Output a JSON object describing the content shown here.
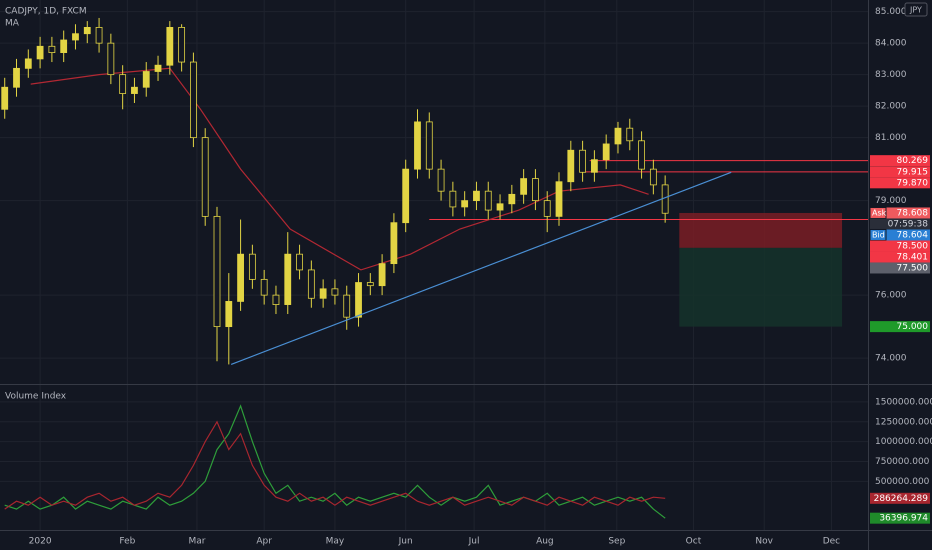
{
  "chart_data": [
    {
      "type": "candlestick",
      "title": "CADJPY, 1D, FXCM",
      "indicator": "MA",
      "currency": "JPY",
      "color": "#e2d444",
      "x": [
        -15,
        -10,
        -5,
        0,
        5,
        10,
        15,
        20,
        25,
        30,
        35,
        40,
        45,
        50,
        55,
        60,
        65,
        70,
        75,
        80,
        85,
        90,
        95,
        100,
        105,
        110,
        115,
        120,
        125,
        130,
        135,
        140,
        145,
        150,
        155,
        160,
        165,
        170,
        175,
        180,
        185,
        190,
        195,
        200,
        205,
        210,
        215,
        220,
        225,
        230,
        235,
        240,
        245,
        250,
        255,
        260,
        265
      ],
      "open": [
        81.9,
        82.6,
        83.2,
        83.5,
        83.9,
        83.7,
        84.1,
        84.3,
        84.5,
        84.0,
        83.0,
        82.4,
        82.6,
        83.1,
        83.3,
        84.5,
        83.4,
        81.0,
        78.5,
        75.0,
        75.8,
        77.3,
        76.5,
        76.0,
        75.7,
        77.3,
        76.8,
        75.9,
        76.2,
        76.0,
        75.3,
        76.4,
        76.3,
        77.0,
        78.3,
        80.0,
        81.5,
        80.0,
        79.3,
        78.8,
        79.0,
        79.3,
        78.7,
        78.9,
        79.2,
        79.7,
        79.0,
        78.5,
        79.6,
        80.6,
        79.9,
        80.3,
        80.8,
        81.3,
        80.9,
        80.0,
        79.5
      ],
      "high": [
        82.9,
        83.5,
        83.8,
        84.2,
        84.2,
        84.4,
        84.6,
        84.7,
        84.8,
        84.3,
        83.3,
        82.9,
        83.4,
        83.6,
        84.7,
        84.6,
        83.7,
        81.3,
        78.8,
        76.7,
        78.4,
        77.6,
        76.8,
        76.3,
        78.0,
        77.6,
        77.1,
        76.5,
        76.5,
        76.3,
        76.7,
        76.7,
        77.3,
        78.6,
        80.3,
        81.9,
        81.8,
        80.3,
        79.6,
        79.3,
        79.6,
        79.6,
        79.2,
        79.5,
        80.0,
        80.0,
        79.3,
        79.9,
        80.9,
        80.9,
        80.6,
        81.1,
        81.5,
        81.6,
        81.2,
        80.3,
        79.8
      ],
      "low": [
        81.6,
        82.3,
        82.9,
        83.2,
        83.4,
        83.4,
        83.8,
        84.0,
        83.7,
        82.7,
        81.9,
        82.1,
        82.3,
        82.8,
        83.0,
        83.1,
        80.7,
        78.2,
        73.9,
        73.8,
        75.5,
        76.2,
        75.7,
        75.4,
        75.4,
        76.5,
        75.6,
        75.6,
        75.7,
        74.9,
        75.0,
        76.0,
        76.0,
        76.7,
        78.0,
        79.7,
        79.7,
        79.0,
        78.5,
        78.5,
        78.7,
        78.4,
        78.4,
        78.6,
        78.9,
        78.7,
        78.0,
        78.2,
        79.3,
        79.6,
        79.6,
        80.0,
        80.5,
        80.6,
        79.7,
        79.2,
        78.3
      ],
      "close": [
        82.6,
        83.2,
        83.5,
        83.9,
        83.7,
        84.1,
        84.3,
        84.5,
        84.0,
        83.0,
        82.4,
        82.6,
        83.1,
        83.3,
        84.5,
        83.4,
        81.0,
        78.5,
        75.0,
        75.8,
        77.3,
        76.5,
        76.0,
        75.7,
        77.3,
        76.8,
        75.9,
        76.2,
        76.0,
        75.3,
        76.4,
        76.3,
        77.0,
        78.3,
        80.0,
        81.5,
        80.0,
        79.3,
        78.8,
        79.0,
        79.3,
        78.7,
        78.9,
        79.2,
        79.7,
        79.0,
        78.5,
        79.6,
        80.6,
        79.9,
        80.3,
        80.8,
        81.3,
        80.9,
        80.0,
        79.5,
        78.6
      ],
      "ma": {
        "color": "#b22833",
        "x": [
          -4,
          25,
          55,
          68,
          85,
          106,
          136,
          157,
          178,
          203,
          220,
          246,
          258
        ],
        "values": [
          82.7,
          83.0,
          83.2,
          81.9,
          80.0,
          78.1,
          76.8,
          77.3,
          78.1,
          78.7,
          79.3,
          79.5,
          79.2
        ]
      },
      "trendline": {
        "color": "#4a8fd4",
        "x": [
          81,
          293
        ],
        "values": [
          73.8,
          79.9
        ]
      },
      "hlines": [
        {
          "value": 80.269,
          "x": 233,
          "color": "#f23645"
        },
        {
          "value": 79.915,
          "x": 230,
          "color": "#f23645"
        },
        {
          "value": 78.401,
          "x": 165,
          "color": "#f23645"
        }
      ],
      "zones": [
        {
          "x": [
            271,
            340
          ],
          "values": [
            78.608,
            77.5
          ],
          "color": "#7a1d25"
        },
        {
          "x": [
            271,
            340
          ],
          "values": [
            77.5,
            75.0
          ],
          "color": "#15332a"
        }
      ],
      "xlim": [
        -17,
        351
      ],
      "ylim": [
        73.21,
        85.37
      ],
      "yticks": [
        {
          "value": 74,
          "label": "74.000"
        },
        {
          "value": 76,
          "label": "76.000"
        },
        {
          "value": 79,
          "label": "79.000"
        },
        {
          "value": 81,
          "label": "81.000"
        },
        {
          "value": 82,
          "label": "82.000"
        },
        {
          "value": 83,
          "label": "83.000"
        },
        {
          "value": 84,
          "label": "84.000"
        },
        {
          "value": 85,
          "label": "85.000"
        }
      ],
      "xticks": [
        {
          "value": 0,
          "label": "2020"
        },
        {
          "value": 37,
          "label": "Feb"
        },
        {
          "value": 66.5,
          "label": "Mar"
        },
        {
          "value": 95,
          "label": "Apr"
        },
        {
          "value": 125,
          "label": "May"
        },
        {
          "value": 155,
          "label": "Jun"
        },
        {
          "value": 184,
          "label": "Jul"
        },
        {
          "value": 214,
          "label": "Aug"
        },
        {
          "value": 244.5,
          "label": "Sep"
        },
        {
          "value": 277,
          "label": "Oct"
        },
        {
          "value": 307,
          "label": "Nov"
        },
        {
          "value": 335.5,
          "label": "Dec"
        }
      ],
      "countdown": "07:59:38",
      "price_labels": [
        {
          "value": 80.269,
          "label": "80.269",
          "color": "#f23645"
        },
        {
          "value": 79.915,
          "label": "79.915",
          "color": "#f23645"
        },
        {
          "value": 79.87,
          "label": "79.870",
          "color": "#f23645"
        },
        {
          "value": 78.608,
          "label": "78.608",
          "tag": "Ask",
          "color": "#f05a5e"
        },
        {
          "value": 78.604,
          "label": "78.604",
          "tag": "Bid",
          "color": "#2a7fd4"
        },
        {
          "value": 78.5,
          "label": "78.500",
          "color": "#f23645"
        },
        {
          "value": 78.401,
          "label": "78.401",
          "color": "#f23645"
        },
        {
          "value": 77.5,
          "label": "77.500",
          "color": "#5d606b"
        },
        {
          "value": 75.0,
          "label": "75.000",
          "color": "#1f9a2a"
        }
      ]
    },
    {
      "type": "line",
      "title": "Volume Index",
      "x": [
        -15,
        -10,
        -5,
        0,
        5,
        10,
        15,
        20,
        25,
        30,
        35,
        40,
        45,
        50,
        55,
        60,
        65,
        70,
        75,
        80,
        85,
        90,
        95,
        100,
        105,
        110,
        115,
        120,
        125,
        130,
        135,
        140,
        145,
        150,
        155,
        160,
        165,
        170,
        175,
        180,
        185,
        190,
        195,
        200,
        205,
        210,
        215,
        220,
        225,
        230,
        235,
        240,
        245,
        250,
        255,
        260,
        265
      ],
      "series": [
        {
          "color": "#2e9e3a",
          "values": [
            200000,
            150000,
            250000,
            150000,
            200000,
            300000,
            150000,
            250000,
            200000,
            150000,
            250000,
            200000,
            150000,
            300000,
            200000,
            250000,
            350000,
            500000,
            900000,
            1100000,
            1450000,
            1000000,
            600000,
            350000,
            450000,
            250000,
            300000,
            250000,
            350000,
            200000,
            300000,
            250000,
            300000,
            350000,
            300000,
            450000,
            300000,
            200000,
            300000,
            250000,
            300000,
            450000,
            200000,
            250000,
            300000,
            250000,
            350000,
            200000,
            250000,
            300000,
            200000,
            250000,
            300000,
            250000,
            300000,
            150000,
            36396.974
          ]
        },
        {
          "color": "#a8262f",
          "values": [
            150000,
            250000,
            200000,
            300000,
            200000,
            250000,
            200000,
            300000,
            350000,
            250000,
            300000,
            200000,
            250000,
            350000,
            300000,
            450000,
            700000,
            1000000,
            1250000,
            900000,
            1100000,
            700000,
            450000,
            300000,
            250000,
            350000,
            250000,
            300000,
            200000,
            300000,
            250000,
            200000,
            250000,
            300000,
            350000,
            250000,
            200000,
            250000,
            300000,
            200000,
            250000,
            300000,
            250000,
            200000,
            300000,
            250000,
            200000,
            300000,
            250000,
            200000,
            300000,
            250000,
            200000,
            300000,
            250000,
            300000,
            286264.289
          ]
        }
      ],
      "xlim": [
        -17,
        351
      ],
      "ylim": [
        -112500,
        1700000
      ],
      "yticks": [
        {
          "value": 500000,
          "label": "500000.000"
        },
        {
          "value": 750000,
          "label": "750000.000"
        },
        {
          "value": 1000000,
          "label": "1000000.000"
        },
        {
          "value": 1250000,
          "label": "1250000.000"
        },
        {
          "value": 1500000,
          "label": "1500000.000"
        }
      ],
      "price_labels": [
        {
          "value": 286264.289,
          "label": "286264.289",
          "color": "#a8262f"
        },
        {
          "value": 36396.974,
          "label": "36396.974",
          "color": "#1f8a2a"
        }
      ]
    }
  ]
}
